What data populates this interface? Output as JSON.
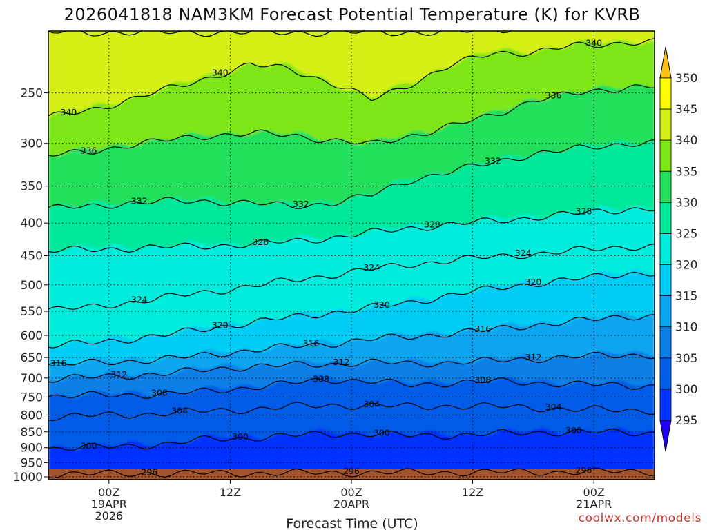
{
  "chart_data": {
    "type": "heatmap",
    "title": "2026041818 NAM3KM Forecast Potential Temperature (K) for KVRB",
    "xlabel": "Forecast Time (UTC)",
    "ylabel": "",
    "credit": "coolwx.com/models",
    "y_axis": {
      "unit": "hPa",
      "scale": "log",
      "range": [
        1010,
        200
      ],
      "ticks": [
        250,
        300,
        350,
        400,
        450,
        500,
        550,
        600,
        650,
        700,
        750,
        800,
        850,
        900,
        950,
        1000
      ]
    },
    "x_axis": {
      "unit": "forecast hour",
      "range": [
        0,
        60
      ],
      "ticks": [
        {
          "hour": 6,
          "lines": [
            "00Z",
            "19APR",
            "2026"
          ]
        },
        {
          "hour": 18,
          "lines": [
            "12Z"
          ]
        },
        {
          "hour": 30,
          "lines": [
            "00Z",
            "20APR"
          ]
        },
        {
          "hour": 42,
          "lines": [
            "12Z"
          ]
        },
        {
          "hour": 54,
          "lines": [
            "00Z",
            "21APR"
          ]
        }
      ]
    },
    "colorbar": {
      "levels": [
        295,
        300,
        305,
        310,
        315,
        320,
        325,
        330,
        335,
        340,
        345,
        350
      ],
      "colors": [
        "#1f00ff",
        "#0033ff",
        "#005ce6",
        "#0b7fe6",
        "#0aa5f0",
        "#00cdf5",
        "#00ecdc",
        "#00e89c",
        "#24e05c",
        "#7ee614",
        "#d4f016",
        "#ffff00",
        "#ffc20f"
      ]
    },
    "series": [
      {
        "name": "theta_300",
        "level_K": 300,
        "pressure_hPa": [
          898,
          895,
          890,
          883,
          868,
          864,
          858,
          852,
          852,
          858,
          856,
          852,
          848,
          846,
          848
        ]
      },
      {
        "name": "theta_304",
        "level_K": 304,
        "pressure_hPa": [
          802,
          798,
          795,
          790,
          784,
          780,
          772,
          768,
          770,
          772,
          770,
          772,
          775,
          780,
          782
        ]
      },
      {
        "name": "theta_308",
        "level_K": 308,
        "pressure_hPa": [
          745,
          742,
          740,
          738,
          730,
          720,
          710,
          700,
          705,
          715,
          708,
          705,
          708,
          712,
          715
        ]
      },
      {
        "name": "theta_312",
        "level_K": 312,
        "pressure_hPa": [
          700,
          695,
          690,
          685,
          675,
          668,
          665,
          662,
          658,
          662,
          658,
          655,
          650,
          645,
          642
        ]
      },
      {
        "name": "theta_316",
        "level_K": 316,
        "pressure_hPa": [
          665,
          660,
          655,
          650,
          640,
          630,
          622,
          615,
          605,
          600,
          592,
          585,
          575,
          568,
          560
        ]
      },
      {
        "name": "theta_320",
        "level_K": 320,
        "pressure_hPa": [
          620,
          614,
          605,
          595,
          582,
          570,
          560,
          550,
          540,
          530,
          515,
          505,
          495,
          488,
          480
        ]
      },
      {
        "name": "theta_324",
        "level_K": 324,
        "pressure_hPa": [
          545,
          540,
          530,
          520,
          510,
          500,
          490,
          480,
          470,
          462,
          455,
          450,
          445,
          440,
          435
        ]
      },
      {
        "name": "theta_328",
        "level_K": 328,
        "pressure_hPa": [
          440,
          438,
          436,
          434,
          432,
          430,
          425,
          420,
          412,
          405,
          400,
          395,
          390,
          385,
          380
        ]
      },
      {
        "name": "theta_332",
        "level_K": 332,
        "pressure_hPa": [
          378,
          375,
          370,
          368,
          368,
          370,
          375,
          370,
          360,
          340,
          330,
          320,
          310,
          305,
          300
        ]
      },
      {
        "name": "theta_336",
        "level_K": 336,
        "pressure_hPa": [
          312,
          308,
          300,
          295,
          290,
          288,
          290,
          295,
          300,
          290,
          280,
          270,
          255,
          250,
          245
        ]
      },
      {
        "name": "theta_340",
        "level_K": 340,
        "pressure_hPa": [
          272,
          265,
          255,
          245,
          235,
          225,
          228,
          240,
          255,
          240,
          225,
          215,
          215,
          210,
          208
        ]
      }
    ],
    "series_hours": [
      0,
      4,
      8,
      12,
      16,
      20,
      24,
      28,
      32,
      36,
      40,
      44,
      48,
      52,
      56
    ],
    "contour_labels": [
      {
        "text": "340",
        "hour": 17,
        "level_K": 340
      },
      {
        "text": "340",
        "hour": 54,
        "level_K": 340
      },
      {
        "text": "340",
        "hour": 2,
        "level_K": 340
      },
      {
        "text": "336",
        "hour": 50,
        "level_K": 336
      },
      {
        "text": "336",
        "hour": 4,
        "level_K": 336
      },
      {
        "text": "332",
        "hour": 9,
        "level_K": 332
      },
      {
        "text": "332",
        "hour": 25,
        "level_K": 332
      },
      {
        "text": "332",
        "hour": 44,
        "level_K": 332
      },
      {
        "text": "328",
        "hour": 53,
        "level_K": 328
      },
      {
        "text": "328",
        "hour": 38,
        "level_K": 328
      },
      {
        "text": "328",
        "hour": 21,
        "level_K": 328
      },
      {
        "text": "324",
        "hour": 47,
        "level_K": 324
      },
      {
        "text": "324",
        "hour": 32,
        "level_K": 324
      },
      {
        "text": "324",
        "hour": 9,
        "level_K": 324
      },
      {
        "text": "320",
        "hour": 48,
        "level_K": 320
      },
      {
        "text": "320",
        "hour": 33,
        "level_K": 320
      },
      {
        "text": "320",
        "hour": 17,
        "level_K": 320
      },
      {
        "text": "316",
        "hour": 43,
        "level_K": 316
      },
      {
        "text": "316",
        "hour": 26,
        "level_K": 316
      },
      {
        "text": "316",
        "hour": 1,
        "level_K": 316
      },
      {
        "text": "312",
        "hour": 48,
        "level_K": 312
      },
      {
        "text": "312",
        "hour": 29,
        "level_K": 312
      },
      {
        "text": "312",
        "hour": 7,
        "level_K": 312
      },
      {
        "text": "308",
        "hour": 43,
        "level_K": 308
      },
      {
        "text": "308",
        "hour": 27,
        "level_K": 308
      },
      {
        "text": "308",
        "hour": 11,
        "level_K": 308
      },
      {
        "text": "304",
        "hour": 50,
        "level_K": 304
      },
      {
        "text": "304",
        "hour": 32,
        "level_K": 304
      },
      {
        "text": "304",
        "hour": 13,
        "level_K": 304
      },
      {
        "text": "300",
        "hour": 52,
        "level_K": 300
      },
      {
        "text": "300",
        "hour": 33,
        "level_K": 300
      },
      {
        "text": "300",
        "hour": 19,
        "level_K": 300
      },
      {
        "text": "300",
        "hour": 4,
        "level_K": 300
      },
      {
        "text": "296",
        "hour": 53,
        "level_K": 296
      },
      {
        "text": "296",
        "hour": 30,
        "level_K": 296
      },
      {
        "text": "296",
        "hour": 10,
        "level_K": 296
      }
    ]
  }
}
